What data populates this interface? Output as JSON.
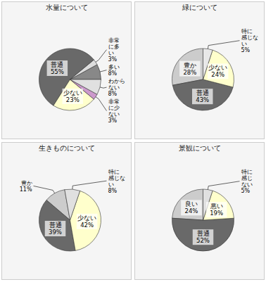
{
  "chart_data": [
    {
      "type": "pie",
      "title": "水量について",
      "categories": [
        "多い",
        "非常\nに多\nい",
        "普通",
        "少ない",
        "非常\nに少\nない",
        "わから\nない"
      ],
      "values": [
        8,
        3,
        55,
        23,
        3,
        8
      ],
      "value_labels": [
        "8%",
        "3%",
        "55%",
        "23%",
        "3%",
        "8%"
      ],
      "colors": [
        "#888888",
        "#dddddd",
        "#696969",
        "#ffffcc",
        "#cc99cc",
        "#e0e0e0"
      ],
      "data_labels": true
    },
    {
      "type": "pie",
      "title": "緑について",
      "categories": [
        "豊か",
        "普通",
        "少ない",
        "特に\n感じな\nい"
      ],
      "values": [
        28,
        43,
        24,
        5
      ],
      "value_labels": [
        "28%",
        "43%",
        "24%",
        "5%"
      ],
      "colors": [
        "#cccccc",
        "#696969",
        "#ffffcc",
        "#e8e8e8"
      ],
      "data_labels": true
    },
    {
      "type": "pie",
      "title": "生きものについて",
      "categories": [
        "豊か",
        "普通",
        "少ない",
        "特に\n感じな\nい"
      ],
      "values": [
        11,
        39,
        42,
        8
      ],
      "value_labels": [
        "11%",
        "39%",
        "42%",
        "8%"
      ],
      "colors": [
        "#cccccc",
        "#696969",
        "#ffffcc",
        "#e0e0e0"
      ],
      "data_labels": true
    },
    {
      "type": "pie",
      "title": "景観について",
      "categories": [
        "良い",
        "普通",
        "悪い",
        "特に\n感じ\nない"
      ],
      "values": [
        24,
        52,
        19,
        5
      ],
      "value_labels": [
        "24%",
        "52%",
        "19%",
        "5%"
      ],
      "colors": [
        "#cccccc",
        "#696969",
        "#ffffcc",
        "#e0e0e0"
      ],
      "data_labels": true
    }
  ]
}
